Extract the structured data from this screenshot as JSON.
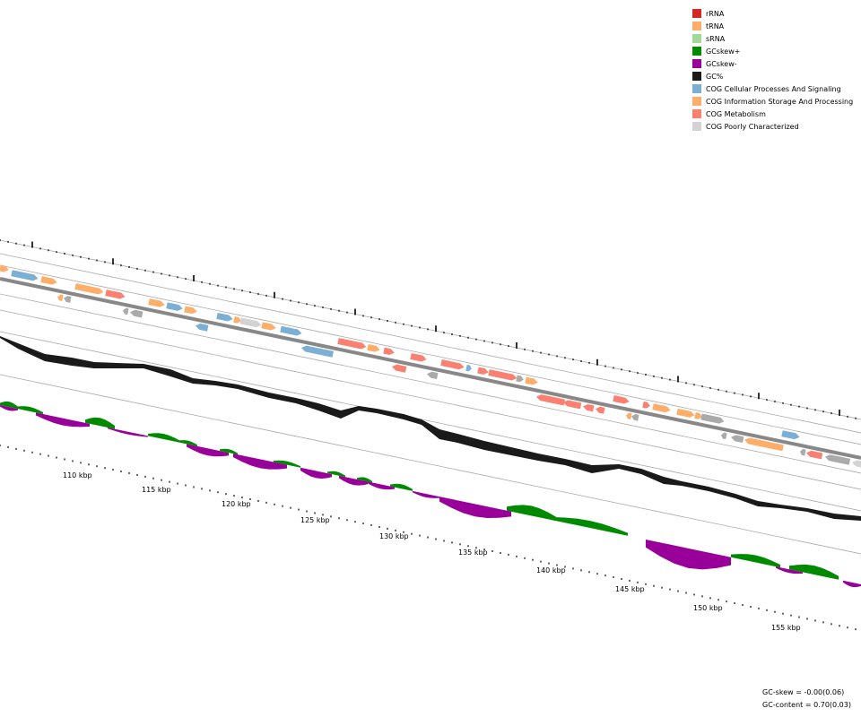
{
  "legend": [
    {
      "label": "rRNA",
      "color": "#d62728"
    },
    {
      "label": "tRNA",
      "color": "#fdae6b"
    },
    {
      "label": "sRNA",
      "color": "#a1d99b"
    },
    {
      "label": "GCskew+",
      "color": "#008a00"
    },
    {
      "label": "GCskew-",
      "color": "#990099"
    },
    {
      "label": "GC%",
      "color": "#1a1a1a"
    },
    {
      "label": "COG Cellular Processes And Signaling",
      "color": "#7bafd4"
    },
    {
      "label": "COG Information Storage And Processing",
      "color": "#fdae6b"
    },
    {
      "label": "COG Metabolism",
      "color": "#fa8072"
    },
    {
      "label": "COG Poorly Characterized",
      "color": "#d3d3d3"
    }
  ],
  "ticks": [
    "110 kbp",
    "115 kbp",
    "120 kbp",
    "125 kbp",
    "130 kbp",
    "135 kbp",
    "140 kbp",
    "145 kbp",
    "150 kbp",
    "155 kbp"
  ],
  "stats": {
    "gc_skew": "GC-skew = -0.00(0.06)",
    "gc_content": "GC-content = 0.70(0.03)"
  }
}
